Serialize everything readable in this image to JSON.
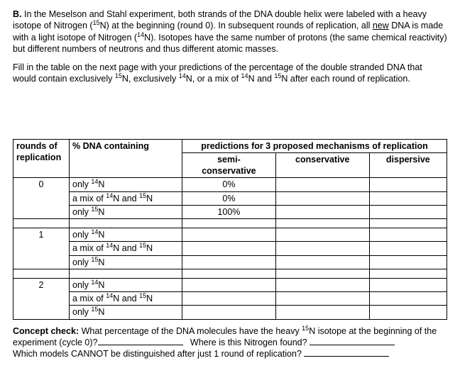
{
  "intro_html": "<b>B.</b> In the Meselson and Stahl experiment, both strands of the DNA double helix were labeled with a heavy isotope of Nitrogen (<sup>15</sup>N) at the beginning (round 0). In subsequent rounds of replication, all <u>new</u> DNA is made with a light isotope of Nitrogen (<sup>14</sup>N).  Isotopes have the same number of protons (the same chemical reactivity) but different numbers of neutrons and thus different atomic masses.",
  "instr_html": "Fill in the table on the next page with your predictions of the percentage of the double stranded DNA that would contain exclusively <sup>15</sup>N, exclusively <sup>14</sup>N, or a mix of <sup>14</sup>N and <sup>15</sup>N after each round of replication.",
  "headers": {
    "rounds_html": "rounds of replication",
    "dna_html": "% DNA containing",
    "mechs": "predictions for 3 proposed mechanisms of replication",
    "semi_html": "semi-<br>conservative",
    "cons": "conservative",
    "disp": "dispersive"
  },
  "row_labels": {
    "only14_html": "only <sup>14</sup>N",
    "mix_html": "a mix of <sup>14</sup>N and <sup>15</sup>N",
    "only15_html": "only <sup>15</sup>N"
  },
  "rounds": [
    "0",
    "1",
    "2"
  ],
  "values_round0": {
    "semi": [
      "0%",
      "0%",
      "100%"
    ]
  },
  "concept_html": "<b>Concept check:</b> What percentage of the DNA molecules have the heavy <sup>15</sup>N isotope at the beginning of the experiment (cycle 0)?",
  "where": "Where is this Nitrogen found?",
  "which": "Which models CANNOT be distinguished after just 1 round of replication?"
}
